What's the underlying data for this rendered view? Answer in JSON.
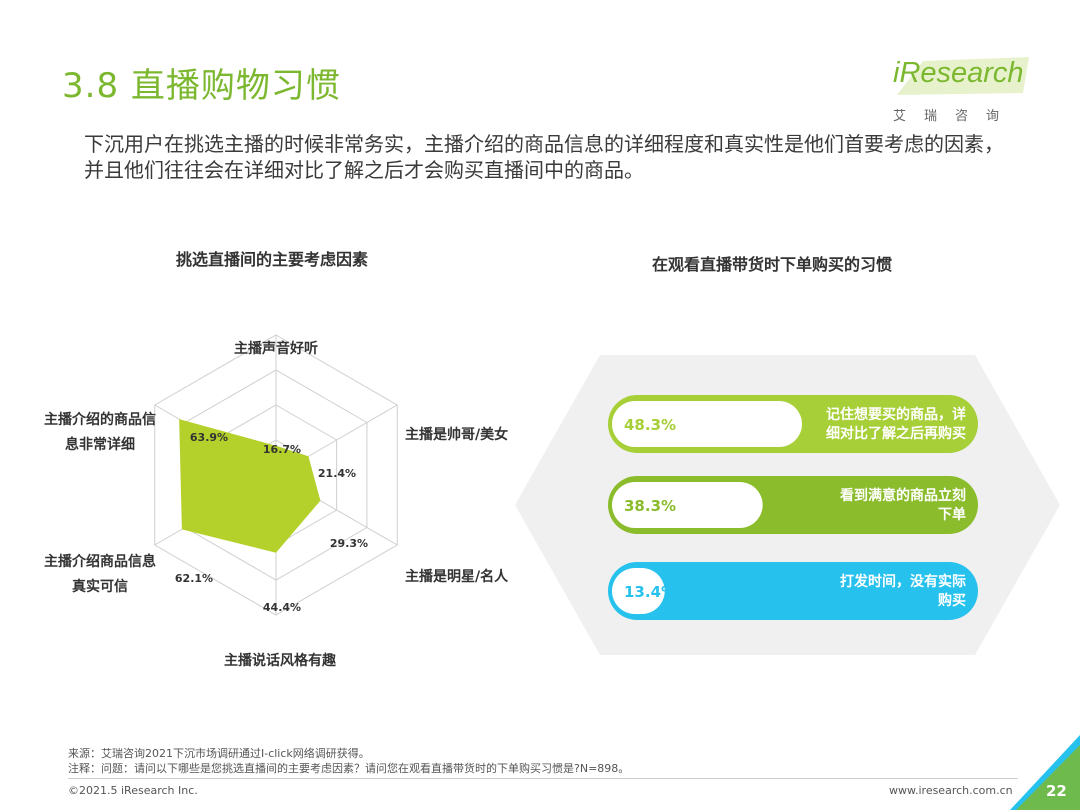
{
  "header": {
    "title": "3.8 直播购物习惯",
    "logo_text": "iResearch",
    "logo_cn": "艾瑞咨询",
    "subtitle_line1": "下沉用户在挑选主播的时候非常务实，主播介绍的商品信息的详细程度和真实性是他们首要考虑的因素，",
    "subtitle_line2": "并且他们往往会在详细对比了解之后才会购买直播间中的商品。"
  },
  "chart_data": [
    {
      "type": "radar",
      "title": "挑选直播间的主要考虑因素",
      "axes": [
        "主播声音好听",
        "主播是帅哥/美女",
        "主播是明星/名人",
        "主播说话风格有趣",
        "主播介绍商品信息真实可信",
        "主播介绍的商品信息非常详细"
      ],
      "axis_label_lines": [
        [
          "主播声音好听"
        ],
        [
          "主播是帅哥/美女"
        ],
        [
          "主播是明星/名人"
        ],
        [
          "主播说话风格有趣"
        ],
        [
          "主播介绍商品信息",
          "真实可信"
        ],
        [
          "主播介绍的商品信",
          "息非常详细"
        ]
      ],
      "values": [
        16.7,
        21.4,
        29.3,
        44.4,
        62.1,
        63.9
      ],
      "value_labels": [
        "16.7%",
        "21.4%",
        "29.3%",
        "44.4%",
        "62.1%",
        "63.9%"
      ],
      "rmax": 80,
      "fill_color": "#b4d12b"
    },
    {
      "type": "bar",
      "title": "在观看直播带货时下单购买的习惯",
      "categories": [
        "记住想要买的商品，详细对比了解之后再购买",
        "看到满意的商品立刻下单",
        "打发时间，没有实际购买"
      ],
      "category_lines": [
        [
          "记住想要买的商品，详",
          "细对比了解之后再购买"
        ],
        [
          "看到满意的商品立刻",
          "下单"
        ],
        [
          "打发时间，没有实际",
          "购买"
        ]
      ],
      "values": [
        48.3,
        38.3,
        13.4
      ],
      "value_labels": [
        "48.3%",
        "38.3%",
        "13.4%"
      ],
      "colors": [
        "#a7cf38",
        "#8bbc2c",
        "#27c1ee"
      ]
    }
  ],
  "footer": {
    "source": "来源：艾瑞咨询2021下沉市场调研通过I-click网络调研获得。",
    "note": "注释：问题：请问以下哪些是您挑选直播间的主要考虑因素？请问您在观看直播带货时的下单购买习惯是?N=898。",
    "copyright": "©2021.5 iResearch Inc.",
    "website": "www.iresearch.com.cn",
    "page_number": "22"
  },
  "colors": {
    "brand_green": "#7cb82f",
    "accent_blue": "#27c1ee"
  }
}
